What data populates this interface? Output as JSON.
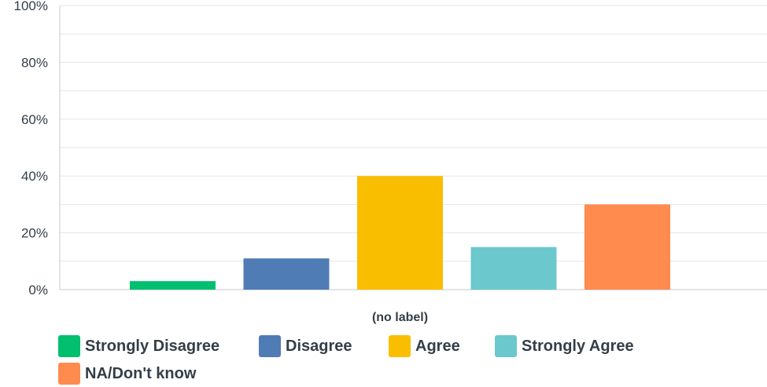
{
  "chart_data": {
    "type": "bar",
    "categories": [
      "(no label)"
    ],
    "series": [
      {
        "name": "Strongly Disagree",
        "values": [
          3
        ],
        "color": "#00bf6f"
      },
      {
        "name": "Disagree",
        "values": [
          11
        ],
        "color": "#507cb6"
      },
      {
        "name": "Agree",
        "values": [
          40
        ],
        "color": "#f9be00"
      },
      {
        "name": "Strongly Agree",
        "values": [
          15
        ],
        "color": "#6bc8cd"
      },
      {
        "name": "NA/Don't know",
        "values": [
          30
        ],
        "color": "#ff8b4f"
      }
    ],
    "ylim": [
      0,
      100
    ],
    "y_ticks": [
      "0%",
      "20%",
      "40%",
      "60%",
      "80%",
      "100%"
    ],
    "y_tick_values": [
      0,
      20,
      40,
      60,
      80,
      100
    ],
    "grid": true,
    "legend_position": "bottom-left"
  }
}
